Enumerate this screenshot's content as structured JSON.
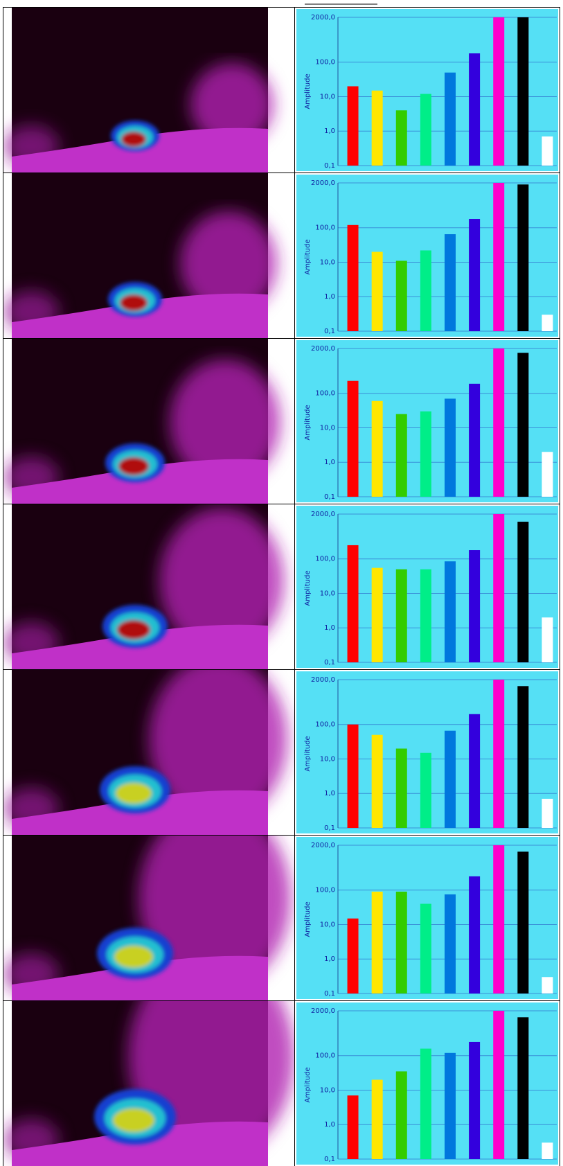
{
  "chart_data": [
    {
      "type": "bar",
      "y_label": "Amplitude",
      "categories": [
        null,
        null,
        null,
        null,
        null,
        null,
        null,
        null,
        null
      ],
      "colors": [
        "#ff0000",
        "#ffe600",
        "#33cc00",
        "#00ee88",
        "#0077dd",
        "#3300dd",
        "#ff00cc",
        "#000000",
        "#ffffff"
      ],
      "values": [
        20,
        15,
        4,
        12,
        50,
        180,
        2000,
        2000,
        0.7
      ],
      "ylim": [
        0.1,
        2000
      ],
      "yticks": [
        {
          "value": 0.1,
          "label": "0,1"
        },
        {
          "value": 1,
          "label": "1,0"
        },
        {
          "value": 10,
          "label": "10,0"
        },
        {
          "value": 100,
          "label": "100,0"
        },
        {
          "value": 2000,
          "label": "2000,0"
        }
      ],
      "log_scale": true,
      "grid": true
    },
    {
      "type": "bar",
      "y_label": "Amplitude",
      "categories": [
        null,
        null,
        null,
        null,
        null,
        null,
        null,
        null,
        null
      ],
      "colors": [
        "#ff0000",
        "#ffe600",
        "#33cc00",
        "#00ee88",
        "#0077dd",
        "#3300dd",
        "#ff00cc",
        "#000000",
        "#ffffff"
      ],
      "values": [
        120,
        20,
        11,
        22,
        65,
        180,
        2000,
        1800,
        0.3
      ],
      "ylim": [
        0.1,
        2000
      ],
      "yticks": [
        {
          "value": 0.1,
          "label": "0,1"
        },
        {
          "value": 1,
          "label": "1,0"
        },
        {
          "value": 10,
          "label": "10,0"
        },
        {
          "value": 100,
          "label": "100,0"
        },
        {
          "value": 2000,
          "label": "2000,0"
        }
      ],
      "log_scale": true,
      "grid": true
    },
    {
      "type": "bar",
      "y_label": "Amplitude",
      "categories": [
        null,
        null,
        null,
        null,
        null,
        null,
        null,
        null,
        null
      ],
      "colors": [
        "#ff0000",
        "#ffe600",
        "#33cc00",
        "#00ee88",
        "#0077dd",
        "#3300dd",
        "#ff00cc",
        "#000000",
        "#ffffff"
      ],
      "values": [
        230,
        60,
        25,
        30,
        70,
        190,
        2000,
        1500,
        2
      ],
      "ylim": [
        0.1,
        2000
      ],
      "yticks": [
        {
          "value": 0.1,
          "label": "0,1"
        },
        {
          "value": 1,
          "label": "1,0"
        },
        {
          "value": 10,
          "label": "10,0"
        },
        {
          "value": 100,
          "label": "100,0"
        },
        {
          "value": 2000,
          "label": "2000,0"
        }
      ],
      "log_scale": true,
      "grid": true
    },
    {
      "type": "bar",
      "y_label": "Amplitude",
      "categories": [
        null,
        null,
        null,
        null,
        null,
        null,
        null,
        null,
        null
      ],
      "colors": [
        "#ff0000",
        "#ffe600",
        "#33cc00",
        "#00ee88",
        "#0077dd",
        "#3300dd",
        "#ff00cc",
        "#000000",
        "#ffffff"
      ],
      "values": [
        250,
        55,
        50,
        50,
        85,
        180,
        2000,
        1200,
        2
      ],
      "ylim": [
        0.1,
        2000
      ],
      "yticks": [
        {
          "value": 0.1,
          "label": "0,1"
        },
        {
          "value": 1,
          "label": "1,0"
        },
        {
          "value": 10,
          "label": "10,0"
        },
        {
          "value": 100,
          "label": "100,0"
        },
        {
          "value": 2000,
          "label": "2000,0"
        }
      ],
      "log_scale": true,
      "grid": true
    },
    {
      "type": "bar",
      "y_label": "Amplitude",
      "categories": [
        null,
        null,
        null,
        null,
        null,
        null,
        null,
        null,
        null
      ],
      "colors": [
        "#ff0000",
        "#ffe600",
        "#33cc00",
        "#00ee88",
        "#0077dd",
        "#3300dd",
        "#ff00cc",
        "#000000",
        "#ffffff"
      ],
      "values": [
        100,
        50,
        20,
        15,
        66,
        200,
        2000,
        1300,
        0.7
      ],
      "ylim": [
        0.1,
        2000
      ],
      "yticks": [
        {
          "value": 0.1,
          "label": "0,1"
        },
        {
          "value": 1,
          "label": "1,0"
        },
        {
          "value": 10,
          "label": "10,0"
        },
        {
          "value": 100,
          "label": "100,0"
        },
        {
          "value": 2000,
          "label": "2000,0"
        }
      ],
      "log_scale": true,
      "grid": true
    },
    {
      "type": "bar",
      "y_label": "Amplitude",
      "categories": [
        null,
        null,
        null,
        null,
        null,
        null,
        null,
        null,
        null
      ],
      "colors": [
        "#ff0000",
        "#ffe600",
        "#33cc00",
        "#00ee88",
        "#0077dd",
        "#3300dd",
        "#ff00cc",
        "#000000",
        "#ffffff"
      ],
      "values": [
        15,
        90,
        90,
        40,
        75,
        250,
        2000,
        1300,
        0.3
      ],
      "ylim": [
        0.1,
        2000
      ],
      "yticks": [
        {
          "value": 0.1,
          "label": "0,1"
        },
        {
          "value": 1,
          "label": "1,0"
        },
        {
          "value": 10,
          "label": "10,0"
        },
        {
          "value": 100,
          "label": "100,0"
        },
        {
          "value": 2000,
          "label": "2000,0"
        }
      ],
      "log_scale": true,
      "grid": true
    },
    {
      "type": "bar",
      "y_label": "Amplitude",
      "categories": [
        null,
        null,
        null,
        null,
        null,
        null,
        null,
        null,
        null
      ],
      "colors": [
        "#ff0000",
        "#ffe600",
        "#33cc00",
        "#00ee88",
        "#0077dd",
        "#3300dd",
        "#ff00cc",
        "#000000",
        "#ffffff"
      ],
      "values": [
        7,
        20,
        35,
        160,
        120,
        250,
        2000,
        1300,
        0.3
      ],
      "ylim": [
        0.1,
        2000
      ],
      "yticks": [
        {
          "value": 0.1,
          "label": "0,1"
        },
        {
          "value": 1,
          "label": "1,0"
        },
        {
          "value": 10,
          "label": "10,0"
        },
        {
          "value": 100,
          "label": "100,0"
        },
        {
          "value": 2000,
          "label": "2000,0"
        }
      ],
      "log_scale": true,
      "grid": true
    }
  ]
}
